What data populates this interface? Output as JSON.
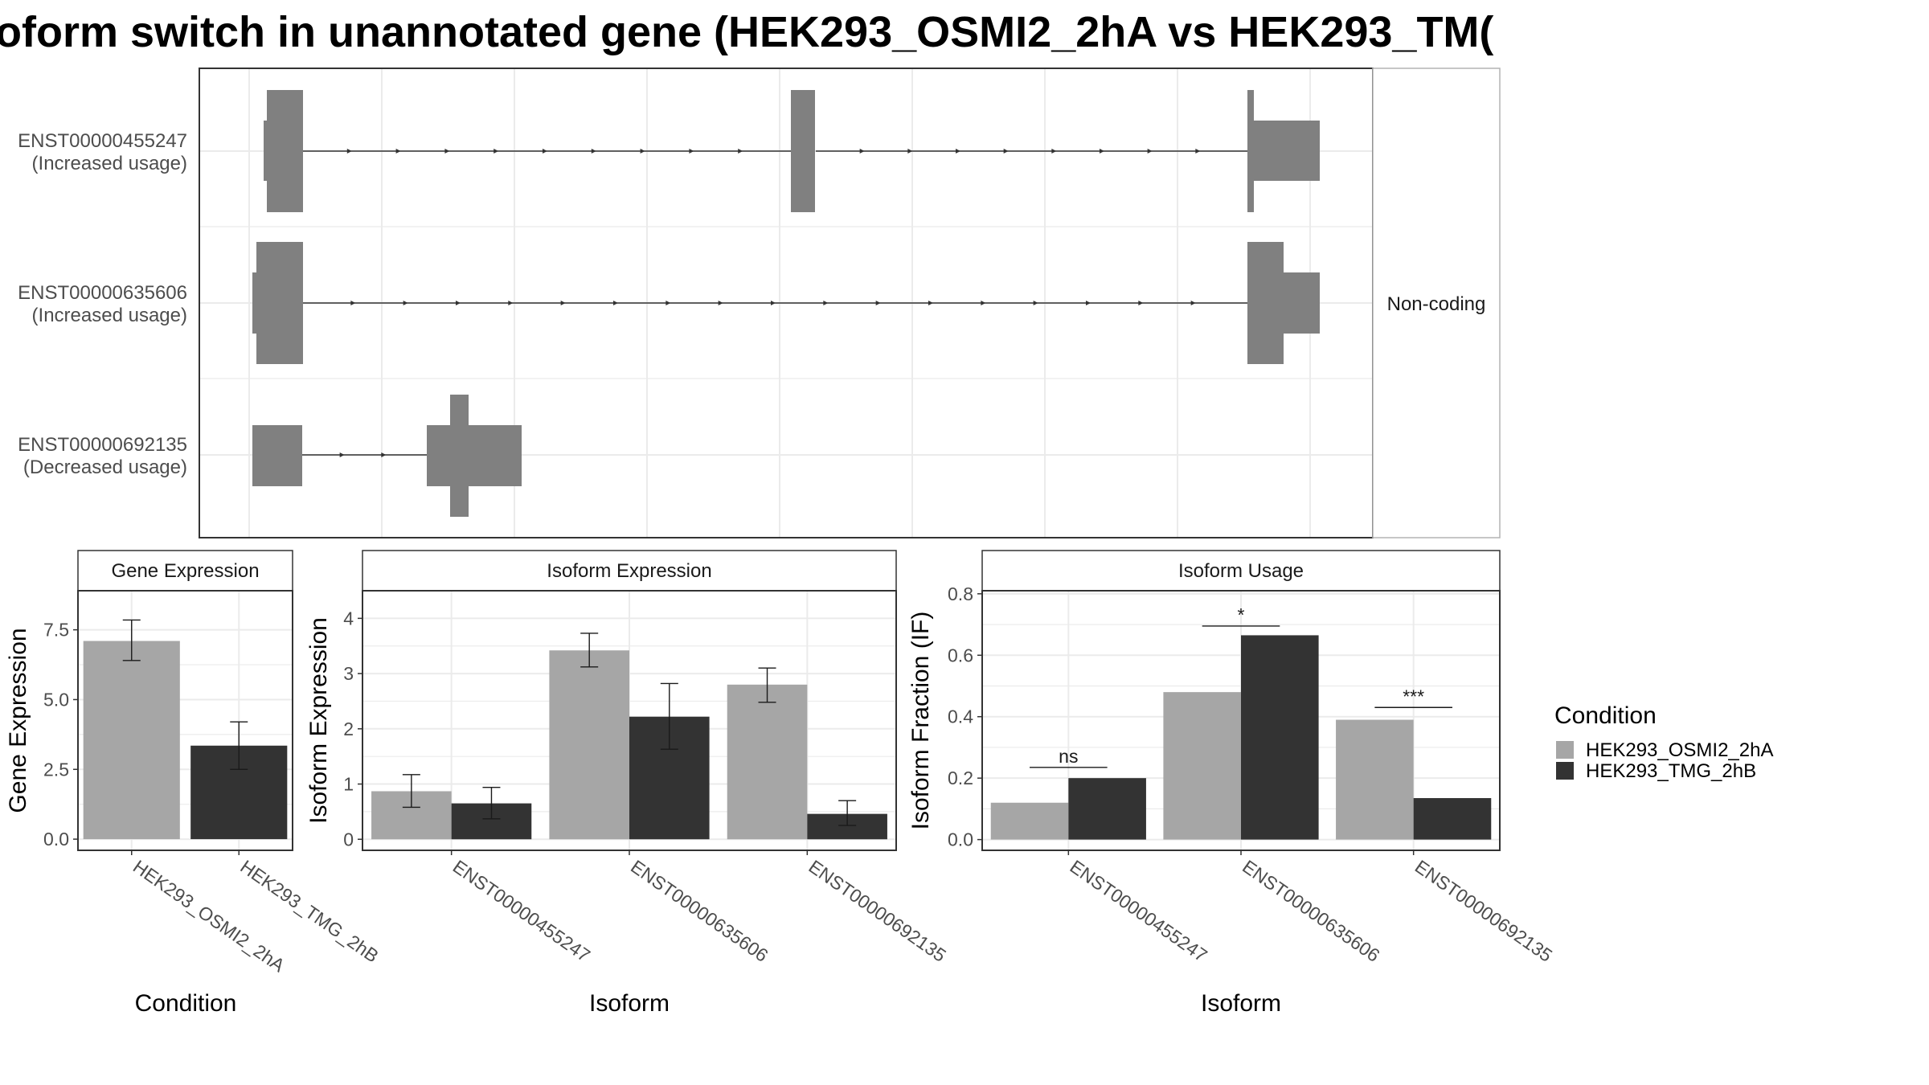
{
  "title": "oform switch in unannotated gene (HEK293_OSMI2_2hA vs HEK293_TM(",
  "colors": {
    "condition_a": "#a6a6a6",
    "condition_b": "#333333",
    "transcript": "#808080",
    "grid": "#ebebeb",
    "panel_border": "#333333",
    "strip_border": "#b3b3b3"
  },
  "chart_data": [
    {
      "type": "gene-structure",
      "panel": "isoform-structures",
      "strip_label": "Non-coding",
      "transcripts": [
        {
          "id": "ENST00000455247",
          "usage": "(Increased usage)"
        },
        {
          "id": "ENST00000635606",
          "usage": "(Increased usage)"
        },
        {
          "id": "ENST00000692135",
          "usage": "(Decreased usage)"
        }
      ]
    },
    {
      "type": "bar",
      "panel": "gene-expression",
      "title": "Gene Expression",
      "xlabel": "Condition",
      "ylabel": "Gene Expression",
      "ylim": [
        -0.4,
        8.9
      ],
      "yticks": [
        0.0,
        2.5,
        5.0,
        7.5
      ],
      "ytick_labels": [
        "0.0",
        "2.5",
        "5.0",
        "7.5"
      ],
      "categories": [
        "HEK293_OSMI2_2hA",
        "HEK293_TMG_2hB"
      ],
      "values": [
        7.1,
        3.35
      ],
      "error_low": [
        6.4,
        2.5
      ],
      "error_high": [
        7.85,
        4.2
      ],
      "colors": [
        "#a6a6a6",
        "#333333"
      ]
    },
    {
      "type": "bar",
      "panel": "isoform-expression",
      "title": "Isoform Expression",
      "xlabel": "Isoform",
      "ylabel": "Isoform Expression",
      "ylim": [
        -0.2,
        4.5
      ],
      "yticks": [
        0,
        1,
        2,
        3,
        4
      ],
      "ytick_labels": [
        "0",
        "1",
        "2",
        "3",
        "4"
      ],
      "categories": [
        "ENST00000455247",
        "ENST00000635606",
        "ENST00000692135"
      ],
      "series": [
        {
          "name": "HEK293_OSMI2_2hA",
          "values": [
            0.87,
            3.42,
            2.8
          ],
          "error_low": [
            0.58,
            3.12,
            2.48
          ],
          "error_high": [
            1.17,
            3.73,
            3.1
          ]
        },
        {
          "name": "HEK293_TMG_2hB",
          "values": [
            0.65,
            2.22,
            0.46
          ],
          "error_low": [
            0.37,
            1.63,
            0.25
          ],
          "error_high": [
            0.94,
            2.82,
            0.7
          ]
        }
      ]
    },
    {
      "type": "bar",
      "panel": "isoform-usage",
      "title": "Isoform Usage",
      "xlabel": "Isoform",
      "ylabel": "Isoform Fraction (IF)",
      "ylim": [
        -0.035,
        0.81
      ],
      "yticks": [
        0.0,
        0.2,
        0.4,
        0.6,
        0.8
      ],
      "ytick_labels": [
        "0.0",
        "0.2",
        "0.4",
        "0.6",
        "0.8"
      ],
      "categories": [
        "ENST00000455247",
        "ENST00000635606",
        "ENST00000692135"
      ],
      "series": [
        {
          "name": "HEK293_OSMI2_2hA",
          "values": [
            0.12,
            0.48,
            0.39
          ]
        },
        {
          "name": "HEK293_TMG_2hB",
          "values": [
            0.2,
            0.665,
            0.135
          ]
        }
      ],
      "significance": [
        {
          "label": "ns",
          "level": 0.235
        },
        {
          "label": "*",
          "level": 0.695
        },
        {
          "label": "***",
          "level": 0.43
        }
      ]
    }
  ],
  "legend": {
    "title": "Condition",
    "items": [
      "HEK293_OSMI2_2hA",
      "HEK293_TMG_2hB"
    ]
  }
}
